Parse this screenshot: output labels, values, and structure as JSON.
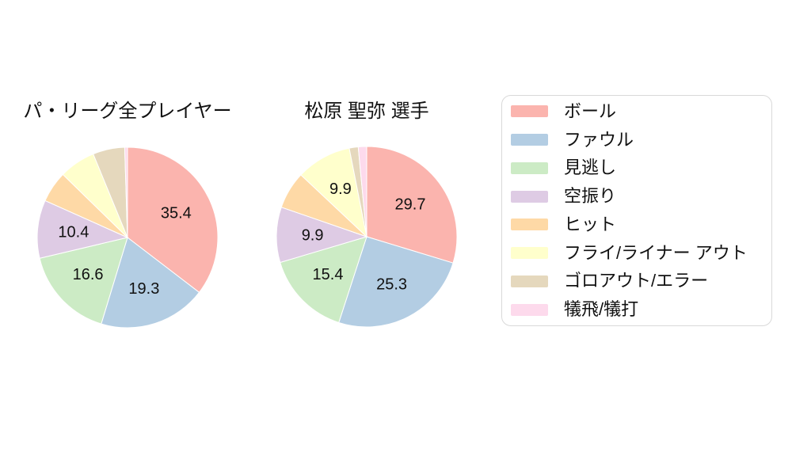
{
  "page": {
    "background": "#ffffff",
    "text_color": "#111111"
  },
  "chart_data": [
    {
      "type": "pie",
      "title": "パ・リーグ全プレイヤー",
      "categories": [
        "ボール",
        "ファウル",
        "見逃し",
        "空振り",
        "ヒット",
        "フライ/ライナー アウト",
        "ゴロアウト/エラー",
        "犠飛/犠打"
      ],
      "values": [
        35.4,
        19.3,
        16.6,
        10.4,
        5.6,
        6.5,
        5.7,
        0.5
      ],
      "value_labels": [
        "35.4",
        "19.3",
        "16.6",
        "10.4",
        "",
        "",
        "",
        ""
      ],
      "colors": [
        "#fbb4ae",
        "#b3cde3",
        "#ccebc5",
        "#decbe4",
        "#fed9a6",
        "#ffffcc",
        "#e5d8bd",
        "#fddaec"
      ],
      "start_angle_deg": 0,
      "direction": "clockwise",
      "label_radius_fraction": 0.6
    },
    {
      "type": "pie",
      "title": "松原 聖弥  選手",
      "categories": [
        "ボール",
        "ファウル",
        "見逃し",
        "空振り",
        "ヒット",
        "フライ/ライナー アウト",
        "ゴロアウト/エラー",
        "犠飛/犠打"
      ],
      "values": [
        29.7,
        25.3,
        15.4,
        9.9,
        6.7,
        9.9,
        1.6,
        1.5
      ],
      "value_labels": [
        "29.7",
        "25.3",
        "15.4",
        "9.9",
        "",
        "9.9",
        "",
        ""
      ],
      "colors": [
        "#fbb4ae",
        "#b3cde3",
        "#ccebc5",
        "#decbe4",
        "#fed9a6",
        "#ffffcc",
        "#e5d8bd",
        "#fddaec"
      ],
      "start_angle_deg": 0,
      "direction": "clockwise",
      "label_radius_fraction": 0.6
    }
  ],
  "legend": {
    "position": "right",
    "border_color": "#d9d9d9",
    "items": [
      {
        "label": "ボール",
        "color": "#fbb4ae"
      },
      {
        "label": "ファウル",
        "color": "#b3cde3"
      },
      {
        "label": "見逃し",
        "color": "#ccebc5"
      },
      {
        "label": "空振り",
        "color": "#decbe4"
      },
      {
        "label": "ヒット",
        "color": "#fed9a6"
      },
      {
        "label": "フライ/ライナー アウト",
        "color": "#ffffcc"
      },
      {
        "label": "ゴロアウト/エラー",
        "color": "#e5d8bd"
      },
      {
        "label": "犠飛/犠打",
        "color": "#fddaec"
      }
    ]
  }
}
